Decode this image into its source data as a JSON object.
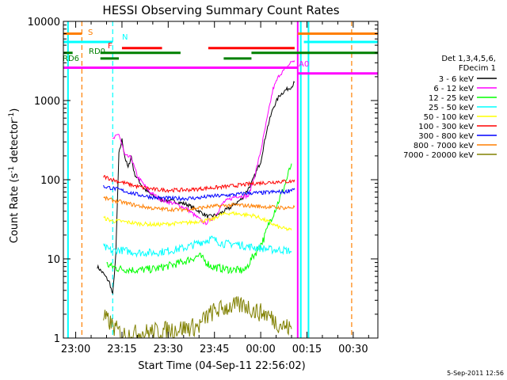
{
  "chart_data": {
    "type": "line",
    "title": "HESSI Observing Summary Count Rates",
    "xlabel": "Start Time (04-Sep-11 22:56:02)",
    "ylabel_html": "Count Rate (s",
    "ylabel_sup": "-1",
    "ylabel_mid": " detector",
    "ylabel_sup2": "-1",
    "ylabel_end": ")",
    "yscale": "log",
    "ylim": [
      1,
      10000
    ],
    "xlim_minutes": [
      -4,
      98
    ],
    "x_ticks": [
      {
        "label": "23:00",
        "minutes": 0
      },
      {
        "label": "23:15",
        "minutes": 15
      },
      {
        "label": "23:30",
        "minutes": 30
      },
      {
        "label": "23:45",
        "minutes": 45
      },
      {
        "label": "00:00",
        "minutes": 60
      },
      {
        "label": "00:15",
        "minutes": 75
      },
      {
        "label": "00:30",
        "minutes": 90
      }
    ],
    "y_ticks": [
      {
        "label": "1",
        "value": 1
      },
      {
        "label": "10",
        "value": 10
      },
      {
        "label": "100",
        "value": 100
      },
      {
        "label": "1000",
        "value": 1000
      },
      {
        "label": "10000",
        "value": 10000
      }
    ],
    "legend": {
      "header": [
        "Det 1,3,4,5,6,",
        "FDecim 1"
      ],
      "placement": "right"
    },
    "series": [
      {
        "name": "3 - 6 keV",
        "color": "#000000",
        "points": [
          [
            7,
            8
          ],
          [
            9,
            6.5
          ],
          [
            11,
            5
          ],
          [
            12,
            3.5
          ],
          [
            13,
            11
          ],
          [
            14,
            210
          ],
          [
            15,
            320
          ],
          [
            16,
            190
          ],
          [
            17,
            140
          ],
          [
            18,
            200
          ],
          [
            19,
            120
          ],
          [
            22,
            78
          ],
          [
            25,
            62
          ],
          [
            28,
            56
          ],
          [
            32,
            53
          ],
          [
            36,
            49
          ],
          [
            40,
            40
          ],
          [
            43,
            34
          ],
          [
            46,
            36
          ],
          [
            50,
            44
          ],
          [
            54,
            58
          ],
          [
            57,
            90
          ],
          [
            60,
            170
          ],
          [
            62,
            430
          ],
          [
            64,
            800
          ],
          [
            66,
            1150
          ],
          [
            68,
            1350
          ],
          [
            70,
            1500
          ],
          [
            71,
            1700
          ]
        ]
      },
      {
        "name": "6 - 12 keV",
        "color": "#ff00ff",
        "points": [
          [
            12,
            320
          ],
          [
            14,
            380
          ],
          [
            16,
            200
          ],
          [
            18,
            190
          ],
          [
            20,
            110
          ],
          [
            24,
            70
          ],
          [
            28,
            55
          ],
          [
            32,
            50
          ],
          [
            36,
            43
          ],
          [
            40,
            32
          ],
          [
            42,
            28
          ],
          [
            45,
            34
          ],
          [
            48,
            52
          ],
          [
            52,
            62
          ],
          [
            56,
            62
          ],
          [
            58,
            110
          ],
          [
            60,
            230
          ],
          [
            62,
            570
          ],
          [
            64,
            1400
          ],
          [
            66,
            2100
          ],
          [
            68,
            2500
          ],
          [
            70,
            3100
          ],
          [
            71,
            3200
          ]
        ]
      },
      {
        "name": "12 - 25 keV",
        "color": "#00ff00",
        "points": [
          [
            10,
            8.5
          ],
          [
            14,
            7.5
          ],
          [
            20,
            7.2
          ],
          [
            26,
            7.5
          ],
          [
            32,
            8.5
          ],
          [
            36,
            9.5
          ],
          [
            40,
            11
          ],
          [
            44,
            8
          ],
          [
            48,
            7.5
          ],
          [
            52,
            7.2
          ],
          [
            55,
            7.2
          ],
          [
            57,
            10
          ],
          [
            59,
            13
          ],
          [
            61,
            18
          ],
          [
            63,
            30
          ],
          [
            65,
            45
          ],
          [
            67,
            70
          ],
          [
            68,
            90
          ],
          [
            69,
            120
          ],
          [
            70,
            160
          ]
        ]
      },
      {
        "name": "25 - 50 keV",
        "color": "#00ffff",
        "points": [
          [
            9,
            14
          ],
          [
            12,
            12.5
          ],
          [
            14,
            13
          ],
          [
            20,
            12
          ],
          [
            26,
            12
          ],
          [
            32,
            13
          ],
          [
            36,
            14
          ],
          [
            40,
            16
          ],
          [
            44,
            18
          ],
          [
            48,
            15.5
          ],
          [
            52,
            15.5
          ],
          [
            55,
            14.5
          ],
          [
            58,
            14
          ],
          [
            61,
            13.5
          ],
          [
            64,
            13
          ],
          [
            67,
            13
          ],
          [
            70,
            12.5
          ]
        ]
      },
      {
        "name": "50 - 100 keV",
        "color": "#ffff00",
        "points": [
          [
            9,
            33
          ],
          [
            12,
            30
          ],
          [
            14,
            30
          ],
          [
            20,
            28
          ],
          [
            26,
            27
          ],
          [
            32,
            28
          ],
          [
            36,
            28.5
          ],
          [
            40,
            30
          ],
          [
            44,
            31
          ],
          [
            47,
            36
          ],
          [
            50,
            38
          ],
          [
            54,
            36.5
          ],
          [
            58,
            35
          ],
          [
            62,
            30
          ],
          [
            66,
            25
          ],
          [
            70,
            23
          ]
        ]
      },
      {
        "name": "100 - 300 keV",
        "color": "#ff0000",
        "points": [
          [
            9,
            110
          ],
          [
            12,
            100
          ],
          [
            14,
            95
          ],
          [
            20,
            82
          ],
          [
            26,
            75
          ],
          [
            30,
            74
          ],
          [
            34,
            74
          ],
          [
            38,
            75
          ],
          [
            42,
            78
          ],
          [
            46,
            80
          ],
          [
            50,
            83
          ],
          [
            54,
            86
          ],
          [
            58,
            90
          ],
          [
            62,
            92
          ],
          [
            66,
            95
          ],
          [
            70,
            95
          ],
          [
            71,
            100
          ]
        ]
      },
      {
        "name": "300 - 800 keV",
        "color": "#0000ff",
        "points": [
          [
            9,
            82
          ],
          [
            12,
            78
          ],
          [
            14,
            75
          ],
          [
            20,
            65
          ],
          [
            26,
            59
          ],
          [
            32,
            58
          ],
          [
            36,
            58
          ],
          [
            40,
            59
          ],
          [
            44,
            62
          ],
          [
            48,
            63
          ],
          [
            52,
            65
          ],
          [
            56,
            68
          ],
          [
            60,
            68
          ],
          [
            64,
            70
          ],
          [
            68,
            70
          ],
          [
            71,
            78
          ]
        ]
      },
      {
        "name": "800 - 7000 keV",
        "color": "#ff7f00",
        "points": [
          [
            9,
            59
          ],
          [
            12,
            55
          ],
          [
            14,
            53
          ],
          [
            20,
            47
          ],
          [
            26,
            43
          ],
          [
            32,
            42
          ],
          [
            36,
            42
          ],
          [
            40,
            44
          ],
          [
            44,
            46
          ],
          [
            48,
            47
          ],
          [
            52,
            48
          ],
          [
            56,
            47
          ],
          [
            60,
            46
          ],
          [
            64,
            45
          ],
          [
            68,
            44
          ],
          [
            71,
            45
          ]
        ]
      },
      {
        "name": "7000 - 20000 keV",
        "color": "#808000",
        "points": [
          [
            9,
            1.8
          ],
          [
            11,
            1.6
          ],
          [
            12,
            1.4
          ],
          [
            14,
            1.2
          ],
          [
            16,
            1.1
          ],
          [
            40,
            1.4
          ],
          [
            42,
            1.8
          ],
          [
            45,
            2.2
          ],
          [
            50,
            2.5
          ],
          [
            55,
            2.6
          ],
          [
            58,
            2.2
          ],
          [
            62,
            2.0
          ],
          [
            66,
            1.5
          ],
          [
            70,
            1.3
          ]
        ]
      }
    ],
    "annotations": {
      "labels": [
        {
          "text": "S",
          "color": "#ff7f00"
        },
        {
          "text": "N",
          "color": "#00ffff"
        },
        {
          "text": "F",
          "color": "#ff0000"
        },
        {
          "text": "RD0",
          "color": "#008000"
        },
        {
          "text": "RD6",
          "color": "#008000"
        },
        {
          "text": "A0",
          "color": "#ff00ff"
        }
      ],
      "flag_bars": [
        {
          "label": "S",
          "color": "#ff7f00",
          "level": 7000,
          "segments": [
            [
              -4,
              2
            ],
            [
              72,
              98
            ]
          ]
        },
        {
          "label": "N",
          "color": "#00ffff",
          "level": 5500,
          "segments": [
            [
              -4,
              12
            ],
            [
              74,
              98
            ]
          ]
        },
        {
          "label": "F",
          "color": "#ff0000",
          "level": 4600,
          "segments": [
            [
              15,
              28
            ],
            [
              43,
              71
            ]
          ]
        },
        {
          "label": "RD0",
          "color": "#008000",
          "level": 4000,
          "segments": [
            [
              -4,
              -1
            ],
            [
              8,
              34
            ],
            [
              57,
              98
            ]
          ]
        },
        {
          "label": "RD6",
          "color": "#008000",
          "level": 3400,
          "segments": [
            [
              8,
              14
            ],
            [
              48,
              57
            ]
          ]
        },
        {
          "label": "A0",
          "color": "#ff00ff",
          "level": 2600,
          "segments": [
            [
              -4,
              72
            ]
          ]
        },
        {
          "label": "A0 high",
          "color": "#ff00ff",
          "level": 2200,
          "segments": [
            [
              72,
              98
            ]
          ]
        }
      ],
      "vertical_lines": [
        {
          "minutes": 2,
          "color": "#ff7f00",
          "style": "dashed"
        },
        {
          "minutes": 12,
          "color": "#00ffff",
          "style": "dashed"
        },
        {
          "minutes": 89.5,
          "color": "#ff7f00",
          "style": "dashed"
        },
        {
          "minutes": -2.5,
          "color": "#00ffff",
          "style": "solid"
        },
        {
          "minutes": 73,
          "color": "#00ffff",
          "style": "solid"
        },
        {
          "minutes": 75.5,
          "color": "#00ffff",
          "style": "solid"
        },
        {
          "minutes": 72,
          "color": "#ff00ff",
          "style": "solid"
        }
      ]
    }
  },
  "footer": {
    "date": "5-Sep-2011 12:56"
  }
}
